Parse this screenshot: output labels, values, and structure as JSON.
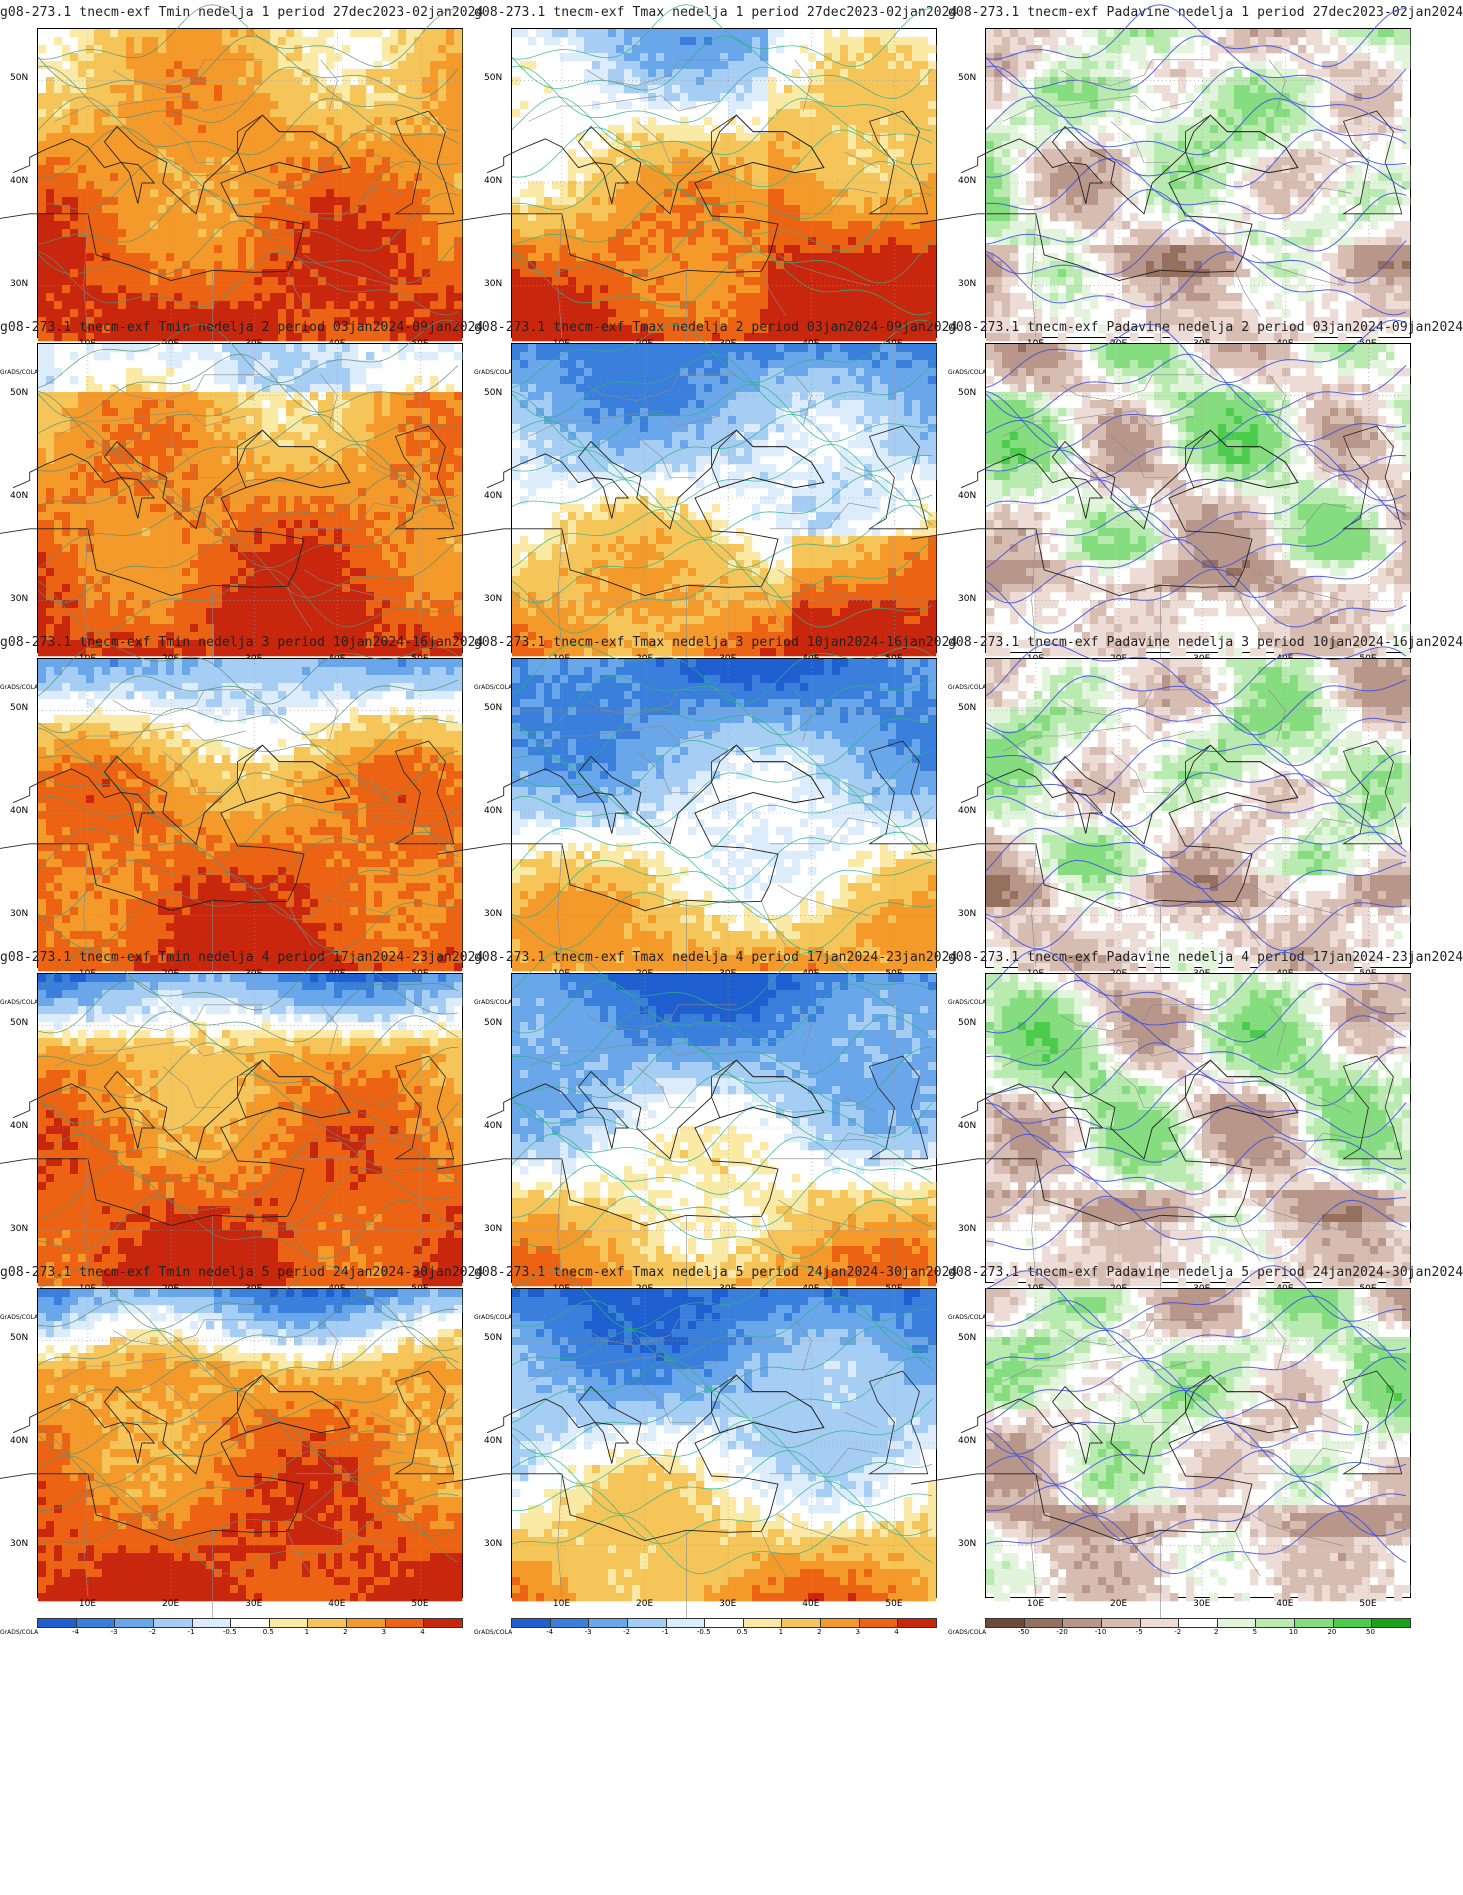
{
  "panels": [
    {
      "title": "g08-273.1 tnecm-exf Tmin nedelja 1 period 27dec2023-02jan2024",
      "var": "tmin",
      "week": 1
    },
    {
      "title": "g08-273.1 tnecm-exf Tmax nedelja 1 period 27dec2023-02jan2024",
      "var": "tmax",
      "week": 1
    },
    {
      "title": "g08-273.1 tnecm-exf Padavine nedelja 1 period 27dec2023-02jan2024",
      "var": "prec",
      "week": 1
    },
    {
      "title": "g08-273.1 tnecm-exf Tmin nedelja 2 period 03jan2024-09jan2024",
      "var": "tmin",
      "week": 2
    },
    {
      "title": "g08-273.1 tnecm-exf Tmax nedelja 2 period 03jan2024-09jan2024",
      "var": "tmax",
      "week": 2
    },
    {
      "title": "g08-273.1 tnecm-exf Padavine nedelja 2 period 03jan2024-09jan2024",
      "var": "prec",
      "week": 2
    },
    {
      "title": "g08-273.1 tnecm-exf Tmin nedelja 3 period 10jan2024-16jan2024",
      "var": "tmin",
      "week": 3
    },
    {
      "title": "g08-273.1 tnecm-exf Tmax nedelja 3 period 10jan2024-16jan2024",
      "var": "tmax",
      "week": 3
    },
    {
      "title": "g08-273.1 tnecm-exf Padavine nedelja 3 period 10jan2024-16jan2024",
      "var": "prec",
      "week": 3
    },
    {
      "title": "g08-273.1 tnecm-exf Tmin nedelja 4 period 17jan2024-23jan2024",
      "var": "tmin",
      "week": 4
    },
    {
      "title": "g08-273.1 tnecm-exf Tmax nedelja 4 period 17jan2024-23jan2024",
      "var": "tmax",
      "week": 4
    },
    {
      "title": "g08-273.1 tnecm-exf Padavine nedelja 4 period 17jan2024-23jan2024",
      "var": "prec",
      "week": 4
    },
    {
      "title": "g08-273.1 tnecm-exf Tmin nedelja 5 period 24jan2024-30jan2024",
      "var": "tmin",
      "week": 5
    },
    {
      "title": "g08-273.1 tnecm-exf Tmax nedelja 5 period 24jan2024-30jan2024",
      "var": "tmax",
      "week": 5
    },
    {
      "title": "g08-273.1 tnecm-exf Padavine nedelja 5 period 24jan2024-30jan2024",
      "var": "prec",
      "week": 5
    }
  ],
  "lat_labels": [
    "50N",
    "40N",
    "30N"
  ],
  "lon_labels": [
    "10E",
    "20E",
    "30E",
    "40E",
    "50E"
  ],
  "credit": "GrADS/COLA",
  "temp_scale": {
    "labels": [
      "-4",
      "-3",
      "-2",
      "-1",
      "-0.5",
      "0.5",
      "1",
      "2",
      "3",
      "4"
    ],
    "colors": [
      "#1f5fcf",
      "#3a7fdc",
      "#6aa6ea",
      "#a6cdf3",
      "#dcecfa",
      "#ffffff",
      "#fbe9a6",
      "#f6c55a",
      "#f39a2b",
      "#ec6413",
      "#c8260d"
    ]
  },
  "precip_scale": {
    "labels": [
      "-50",
      "-20",
      "-10",
      "-5",
      "-2",
      "2",
      "5",
      "10",
      "20",
      "50"
    ],
    "colors": [
      "#6e4a3a",
      "#95705f",
      "#b8978a",
      "#d6bcb1",
      "#ecdcd5",
      "#ffffff",
      "#e2f5dc",
      "#b9ebb0",
      "#86dd80",
      "#4ccc4c",
      "#1aa21a"
    ]
  }
}
